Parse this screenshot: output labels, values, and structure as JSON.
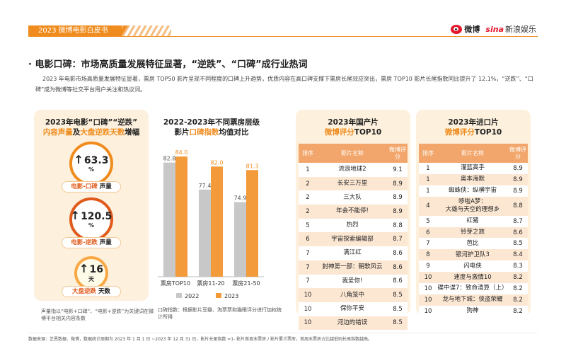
{
  "header": {
    "tab_label": "2023 微博电影白皮书",
    "weibo_label": "微博",
    "sina_label": "sina",
    "sina_ent": "新浪娱乐"
  },
  "heading": "· 电影口碑：市场高质量发展特征显著，“逆跌”、“口碑”成行业热词",
  "intro": "2023 年电影市场高质量发展特征显著，票房 TOP50 影片呈现不同程度的口碑上升趋势，优质内容在高口碑支撑下票房长尾效应突出，票房 TOP10 影片长尾指数同比提升了 12.1%，“逆跌”、“口碑”成为微博等社交平台用户关注和热议词。",
  "panel1": {
    "title_line1": "2023年电影“口碑”“逆跌”",
    "title_org1": "内容声量",
    "title_mid": "及",
    "title_org2": "大盘逆跌天数",
    "title_end": "增幅",
    "badges": [
      {
        "value": "63.3",
        "unit": "%",
        "label_red": "电影-口碑",
        "label_black": " 声量"
      },
      {
        "value": "120.5",
        "unit": "%",
        "label_red": "电影-逆跌",
        "label_black": " 声量"
      },
      {
        "value": "16",
        "unit": "天",
        "label_red": "大盘逆跌",
        "label_black": " 天数"
      }
    ],
    "arrow": "↑",
    "note": "声量指以“电影+口碑”、“电影+逆跌”为关键词在微博平台相关内容条数"
  },
  "panel2": {
    "title_line1": "2022-2023年不同票房层级",
    "title_line2a": "影片",
    "title_org": "口碑指数",
    "title_line2b": "均值对比",
    "note": "口碑指数：根据影片豆瓣、淘票票和猫眼评分进行加权统计所得"
  },
  "chart_data": {
    "type": "bar",
    "categories": [
      "票房TOP10",
      "票房11-20",
      "票房21-50"
    ],
    "series": [
      {
        "name": "2022",
        "values": [
          82.8,
          77.4,
          74.9
        ],
        "color": "#c8c8c8"
      },
      {
        "name": "2023",
        "values": [
          84.0,
          82.0,
          81.3
        ],
        "color": "#f39a3b"
      }
    ],
    "value_labels": [
      [
        "82.8",
        "77.4",
        "74.9"
      ],
      [
        "84.0",
        "82.0",
        "81.3"
      ]
    ],
    "ylim": [
      60,
      86
    ],
    "legend": "bottom",
    "grid": false
  },
  "domestic": {
    "title_line1": "2023年国产片",
    "title_org": "微博评分",
    "title_end": "TOP10",
    "headers": [
      "排序",
      "影片名称",
      "微博评分"
    ],
    "rows": [
      [
        "1",
        "流浪地球2",
        "9.1"
      ],
      [
        "2",
        "长安三万里",
        "8.9"
      ],
      [
        "2",
        "三大队",
        "8.9"
      ],
      [
        "2",
        "年会不能停!",
        "8.9"
      ],
      [
        "5",
        "热烈",
        "8.8"
      ],
      [
        "6",
        "宇宙探索编辑部",
        "8.7"
      ],
      [
        "7",
        "满江红",
        "8.6"
      ],
      [
        "7",
        "封神第一部：朝歌风云",
        "8.6"
      ],
      [
        "7",
        "我爱你!",
        "8.6"
      ],
      [
        "10",
        "八角笼中",
        "8.5"
      ],
      [
        "10",
        "保你平安",
        "8.5"
      ],
      [
        "10",
        "河边的错误",
        "8.5"
      ]
    ]
  },
  "imported": {
    "title_line1": "2023年进口片",
    "title_org": "微博评分",
    "title_end": "TOP10",
    "headers": [
      "排序",
      "影片名称",
      "微博评分"
    ],
    "rows": [
      [
        "1",
        "灌篮高手",
        "8.9"
      ],
      [
        "1",
        "奥本海默",
        "8.9"
      ],
      [
        "1",
        "蜘蛛侠：纵横宇宙",
        "8.9"
      ],
      [
        "4",
        "哆啦A梦：\n大雄与天空的理想乡",
        "8.8"
      ],
      [
        "5",
        "红猪",
        "8.7"
      ],
      [
        "6",
        "铃芽之旅",
        "8.6"
      ],
      [
        "7",
        "芭比",
        "8.5"
      ],
      [
        "8",
        "银河护卫队3",
        "8.4"
      ],
      [
        "9",
        "闪电侠",
        "8.3"
      ],
      [
        "10",
        "速度与激情10",
        "8.2"
      ],
      [
        "10",
        "碟中谍7：致命清算（上）",
        "8.2"
      ],
      [
        "10",
        "龙与地下城：侠盗荣耀",
        "8.2"
      ],
      [
        "10",
        "狗神",
        "8.2"
      ]
    ]
  },
  "footer": "数据来源：艺恩数据、微博，数据统计周期为 2023 年 1 月 1 日 ~2023 年 12 月 31 日，影片长尾指数 =1- 影片首周末票房 / 影片累计票房，首周末票房占比越低则长尾指数越高。"
}
